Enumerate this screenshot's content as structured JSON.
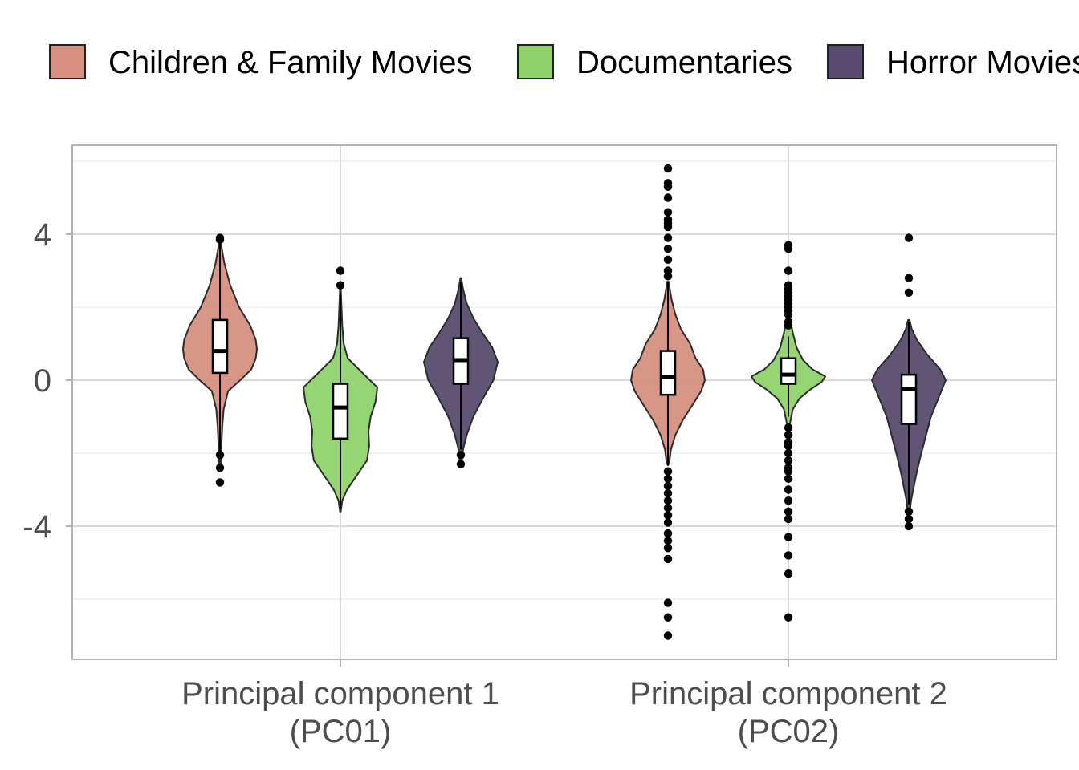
{
  "chart_data": {
    "type": "violin",
    "title": "",
    "xlabel": "",
    "ylabel": "",
    "ylim": [
      -7.6,
      6.5
    ],
    "y_ticks": [
      4,
      0,
      -4
    ],
    "y_tick_labels": [
      "4",
      "0",
      "-4"
    ],
    "y_minor_ticks": [
      6,
      2,
      -2,
      -6
    ],
    "legend_position": "top",
    "categories": [
      {
        "key": "pc1",
        "line1": "Principal component 1",
        "line2": "(PC01)"
      },
      {
        "key": "pc2",
        "line1": "Principal component 2",
        "line2": "(PC02)"
      }
    ],
    "series": [
      {
        "name": "Children & Family Movies",
        "color": "#D5907F",
        "data": {
          "pc1": {
            "density": [
              [
                -2.3,
                0.02
              ],
              [
                -1.8,
                0.04
              ],
              [
                -1.3,
                0.06
              ],
              [
                -0.8,
                0.1
              ],
              [
                -0.3,
                0.22
              ],
              [
                0.0,
                0.55
              ],
              [
                0.3,
                0.85
              ],
              [
                0.6,
                0.97
              ],
              [
                0.85,
                1.0
              ],
              [
                1.1,
                0.97
              ],
              [
                1.5,
                0.82
              ],
              [
                2.0,
                0.52
              ],
              [
                2.6,
                0.28
              ],
              [
                3.2,
                0.12
              ],
              [
                3.6,
                0.05
              ],
              [
                3.8,
                0.02
              ]
            ],
            "q1": 0.2,
            "median": 0.8,
            "q3": 1.65,
            "wlo": -2.0,
            "whi": 3.8,
            "outliers": [
              -2.05,
              -2.4,
              -2.8,
              3.85,
              3.9
            ]
          },
          "pc2": {
            "density": [
              [
                -2.3,
                0.03
              ],
              [
                -1.9,
                0.08
              ],
              [
                -1.5,
                0.2
              ],
              [
                -1.1,
                0.4
              ],
              [
                -0.7,
                0.65
              ],
              [
                -0.3,
                0.9
              ],
              [
                0.0,
                1.0
              ],
              [
                0.3,
                0.95
              ],
              [
                0.6,
                0.75
              ],
              [
                1.0,
                0.6
              ],
              [
                1.4,
                0.35
              ],
              [
                1.8,
                0.2
              ],
              [
                2.2,
                0.1
              ],
              [
                2.5,
                0.05
              ],
              [
                2.7,
                0.02
              ]
            ],
            "q1": -0.4,
            "median": 0.1,
            "q3": 0.8,
            "wlo": -2.35,
            "whi": 2.7,
            "outliers": [
              5.8,
              5.4,
              5.3,
              5.0,
              4.6,
              4.4,
              4.3,
              4.2,
              3.9,
              3.6,
              3.3,
              3.0,
              2.85,
              -2.5,
              -2.7,
              -2.9,
              -3.1,
              -3.3,
              -3.5,
              -3.7,
              -3.9,
              -4.2,
              -4.4,
              -4.6,
              -4.9,
              -6.1,
              -6.5,
              -7.0
            ]
          }
        }
      },
      {
        "name": "Documentaries",
        "color": "#8FD36D",
        "data": {
          "pc1": {
            "density": [
              [
                -3.6,
                0.01
              ],
              [
                -3.3,
                0.05
              ],
              [
                -3.0,
                0.18
              ],
              [
                -2.6,
                0.45
              ],
              [
                -2.2,
                0.72
              ],
              [
                -1.8,
                0.78
              ],
              [
                -1.4,
                0.76
              ],
              [
                -1.0,
                0.82
              ],
              [
                -0.6,
                0.95
              ],
              [
                -0.2,
                1.0
              ],
              [
                0.2,
                0.6
              ],
              [
                0.6,
                0.2
              ],
              [
                1.0,
                0.09
              ],
              [
                1.5,
                0.05
              ],
              [
                2.0,
                0.03
              ],
              [
                2.5,
                0.01
              ]
            ],
            "q1": -1.6,
            "median": -0.75,
            "q3": -0.1,
            "wlo": -3.5,
            "whi": 2.4,
            "outliers": [
              2.6,
              3.0
            ]
          },
          "pc2": {
            "density": [
              [
                -1.2,
                0.04
              ],
              [
                -0.8,
                0.12
              ],
              [
                -0.5,
                0.3
              ],
              [
                -0.25,
                0.6
              ],
              [
                -0.05,
                0.9
              ],
              [
                0.1,
                1.0
              ],
              [
                0.3,
                0.65
              ],
              [
                0.55,
                0.4
              ],
              [
                0.9,
                0.22
              ],
              [
                1.3,
                0.12
              ],
              [
                1.6,
                0.06
              ],
              [
                1.75,
                0.02
              ]
            ],
            "q1": -0.1,
            "median": 0.15,
            "q3": 0.6,
            "wlo": -1.0,
            "whi": 1.2,
            "outliers": [
              3.7,
              3.6,
              3.0,
              2.6,
              2.5,
              2.4,
              2.3,
              2.2,
              2.1,
              2.0,
              1.9,
              1.8,
              1.6,
              1.5,
              -1.3,
              -1.5,
              -1.7,
              -1.8,
              -2.0,
              -2.2,
              -2.4,
              -2.5,
              -2.7,
              -3.0,
              -3.3,
              -3.6,
              -3.8,
              -4.3,
              -4.8,
              -5.3,
              -6.5
            ]
          }
        }
      },
      {
        "name": "Horror Movies",
        "color": "#574C6E",
        "data": {
          "pc1": {
            "density": [
              [
                -2.3,
                0.02
              ],
              [
                -1.9,
                0.06
              ],
              [
                -1.5,
                0.16
              ],
              [
                -1.0,
                0.34
              ],
              [
                -0.5,
                0.6
              ],
              [
                0.0,
                0.88
              ],
              [
                0.5,
                1.0
              ],
              [
                0.9,
                0.85
              ],
              [
                1.3,
                0.58
              ],
              [
                1.7,
                0.34
              ],
              [
                2.1,
                0.16
              ],
              [
                2.5,
                0.06
              ],
              [
                2.8,
                0.01
              ]
            ],
            "q1": -0.1,
            "median": 0.55,
            "q3": 1.15,
            "wlo": -1.9,
            "whi": 2.7,
            "outliers": [
              -2.05,
              -2.3
            ]
          },
          "pc2": {
            "density": [
              [
                -3.7,
                0.02
              ],
              [
                -3.3,
                0.06
              ],
              [
                -3.0,
                0.12
              ],
              [
                -2.5,
                0.22
              ],
              [
                -2.0,
                0.34
              ],
              [
                -1.5,
                0.47
              ],
              [
                -1.0,
                0.6
              ],
              [
                -0.5,
                0.8
              ],
              [
                0.0,
                1.0
              ],
              [
                0.3,
                0.85
              ],
              [
                0.7,
                0.5
              ],
              [
                1.1,
                0.22
              ],
              [
                1.4,
                0.08
              ],
              [
                1.65,
                0.02
              ]
            ],
            "q1": -1.2,
            "median": -0.25,
            "q3": 0.15,
            "wlo": -3.4,
            "whi": 1.6,
            "outliers": [
              3.9,
              2.8,
              2.4,
              -3.6,
              -3.8,
              -4.0
            ]
          }
        }
      }
    ]
  }
}
